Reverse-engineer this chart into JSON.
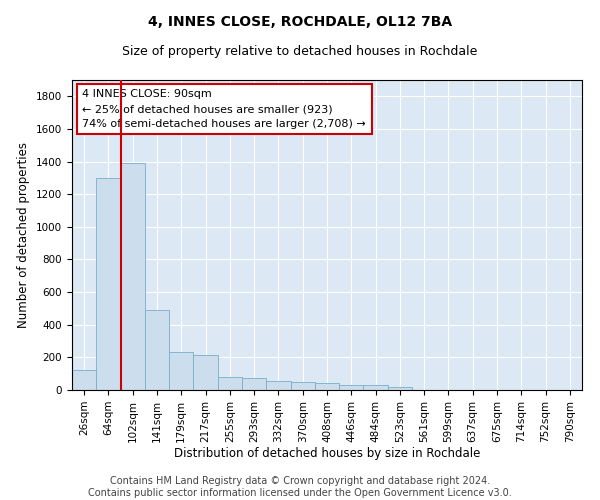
{
  "title": "4, INNES CLOSE, ROCHDALE, OL12 7BA",
  "subtitle": "Size of property relative to detached houses in Rochdale",
  "xlabel": "Distribution of detached houses by size in Rochdale",
  "ylabel": "Number of detached properties",
  "categories": [
    "26sqm",
    "64sqm",
    "102sqm",
    "141sqm",
    "179sqm",
    "217sqm",
    "255sqm",
    "293sqm",
    "332sqm",
    "370sqm",
    "408sqm",
    "446sqm",
    "484sqm",
    "523sqm",
    "561sqm",
    "599sqm",
    "637sqm",
    "675sqm",
    "714sqm",
    "752sqm",
    "790sqm"
  ],
  "values": [
    120,
    1300,
    1390,
    490,
    230,
    215,
    80,
    75,
    55,
    50,
    45,
    30,
    30,
    20,
    0,
    0,
    0,
    0,
    0,
    0,
    0
  ],
  "bar_color": "#ccdded",
  "bar_edge_color": "#7aaec8",
  "vline_x_index": 2,
  "vline_color": "#cc0000",
  "annotation_text": "4 INNES CLOSE: 90sqm\n← 25% of detached houses are smaller (923)\n74% of semi-detached houses are larger (2,708) →",
  "annotation_box_color": "#cc0000",
  "ylim": [
    0,
    1900
  ],
  "yticks": [
    0,
    200,
    400,
    600,
    800,
    1000,
    1200,
    1400,
    1600,
    1800
  ],
  "bg_color": "#dce8f4",
  "grid_color": "#ffffff",
  "footer_text": "Contains HM Land Registry data © Crown copyright and database right 2024.\nContains public sector information licensed under the Open Government Licence v3.0.",
  "title_fontsize": 10,
  "subtitle_fontsize": 9,
  "axis_label_fontsize": 8.5,
  "tick_fontsize": 7.5,
  "annotation_fontsize": 8,
  "footer_fontsize": 7
}
